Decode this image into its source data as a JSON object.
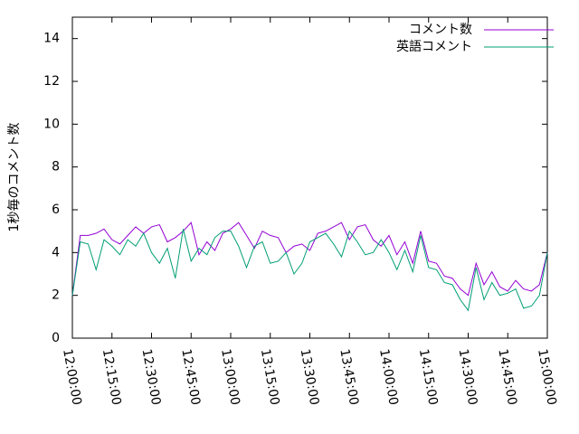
{
  "chart_data": {
    "type": "line",
    "y_label": "1秒毎のコメント数",
    "x": [
      "12:00:00",
      "12:03:00",
      "12:06:00",
      "12:09:00",
      "12:12:00",
      "12:15:00",
      "12:18:00",
      "12:21:00",
      "12:24:00",
      "12:27:00",
      "12:30:00",
      "12:33:00",
      "12:36:00",
      "12:39:00",
      "12:42:00",
      "12:45:00",
      "12:48:00",
      "12:51:00",
      "12:54:00",
      "12:57:00",
      "13:00:00",
      "13:03:00",
      "13:06:00",
      "13:09:00",
      "13:12:00",
      "13:15:00",
      "13:18:00",
      "13:21:00",
      "13:24:00",
      "13:27:00",
      "13:30:00",
      "13:33:00",
      "13:36:00",
      "13:39:00",
      "13:42:00",
      "13:45:00",
      "13:48:00",
      "13:51:00",
      "13:54:00",
      "13:57:00",
      "14:00:00",
      "14:03:00",
      "14:06:00",
      "14:09:00",
      "14:12:00",
      "14:15:00",
      "14:18:00",
      "14:21:00",
      "14:24:00",
      "14:27:00",
      "14:30:00",
      "14:33:00",
      "14:36:00",
      "14:39:00",
      "14:42:00",
      "14:45:00",
      "14:48:00",
      "14:51:00",
      "14:54:00",
      "14:57:00",
      "15:00:00"
    ],
    "series": [
      {
        "name": "コメント数",
        "color": "#9400d3",
        "values": [
          2.0,
          4.8,
          4.8,
          4.9,
          5.1,
          4.6,
          4.4,
          4.8,
          5.2,
          4.9,
          5.2,
          5.3,
          4.5,
          4.7,
          5.0,
          5.4,
          3.9,
          4.5,
          4.1,
          4.9,
          5.1,
          5.4,
          4.8,
          4.2,
          5.0,
          4.8,
          4.7,
          4.0,
          4.3,
          4.4,
          4.1,
          4.9,
          5.0,
          5.2,
          5.4,
          4.6,
          5.2,
          5.3,
          4.6,
          4.3,
          4.8,
          3.9,
          4.5,
          3.5,
          5.0,
          3.6,
          3.5,
          2.9,
          2.8,
          2.3,
          2.0,
          3.5,
          2.5,
          3.1,
          2.4,
          2.2,
          2.7,
          2.3,
          2.2,
          2.5,
          4.0
        ]
      },
      {
        "name": "英語コメント",
        "color": "#009e73",
        "values": [
          2.0,
          4.5,
          4.4,
          3.2,
          4.6,
          4.3,
          3.9,
          4.6,
          4.3,
          4.9,
          4.0,
          3.5,
          4.2,
          2.8,
          5.1,
          3.6,
          4.2,
          3.9,
          4.7,
          5.0,
          5.0,
          4.3,
          3.3,
          4.3,
          4.5,
          3.5,
          3.6,
          4.0,
          3.0,
          3.5,
          4.5,
          4.7,
          4.9,
          4.4,
          3.8,
          5.0,
          4.5,
          3.9,
          4.0,
          4.6,
          4.0,
          3.2,
          4.1,
          3.1,
          4.8,
          3.3,
          3.2,
          2.6,
          2.5,
          1.8,
          1.3,
          3.3,
          1.8,
          2.6,
          2.0,
          2.1,
          2.3,
          1.4,
          1.5,
          2.0,
          4.0
        ]
      }
    ],
    "xlim": [
      "12:00:00",
      "15:00:00"
    ],
    "xticks": [
      "12:00:00",
      "12:15:00",
      "12:30:00",
      "12:45:00",
      "13:00:00",
      "13:15:00",
      "13:30:00",
      "13:45:00",
      "14:00:00",
      "14:15:00",
      "14:30:00",
      "14:45:00",
      "15:00:00"
    ],
    "ylim": [
      0,
      15
    ],
    "yticks": [
      0,
      2,
      4,
      6,
      8,
      10,
      12,
      14
    ],
    "legend": "top-right"
  }
}
